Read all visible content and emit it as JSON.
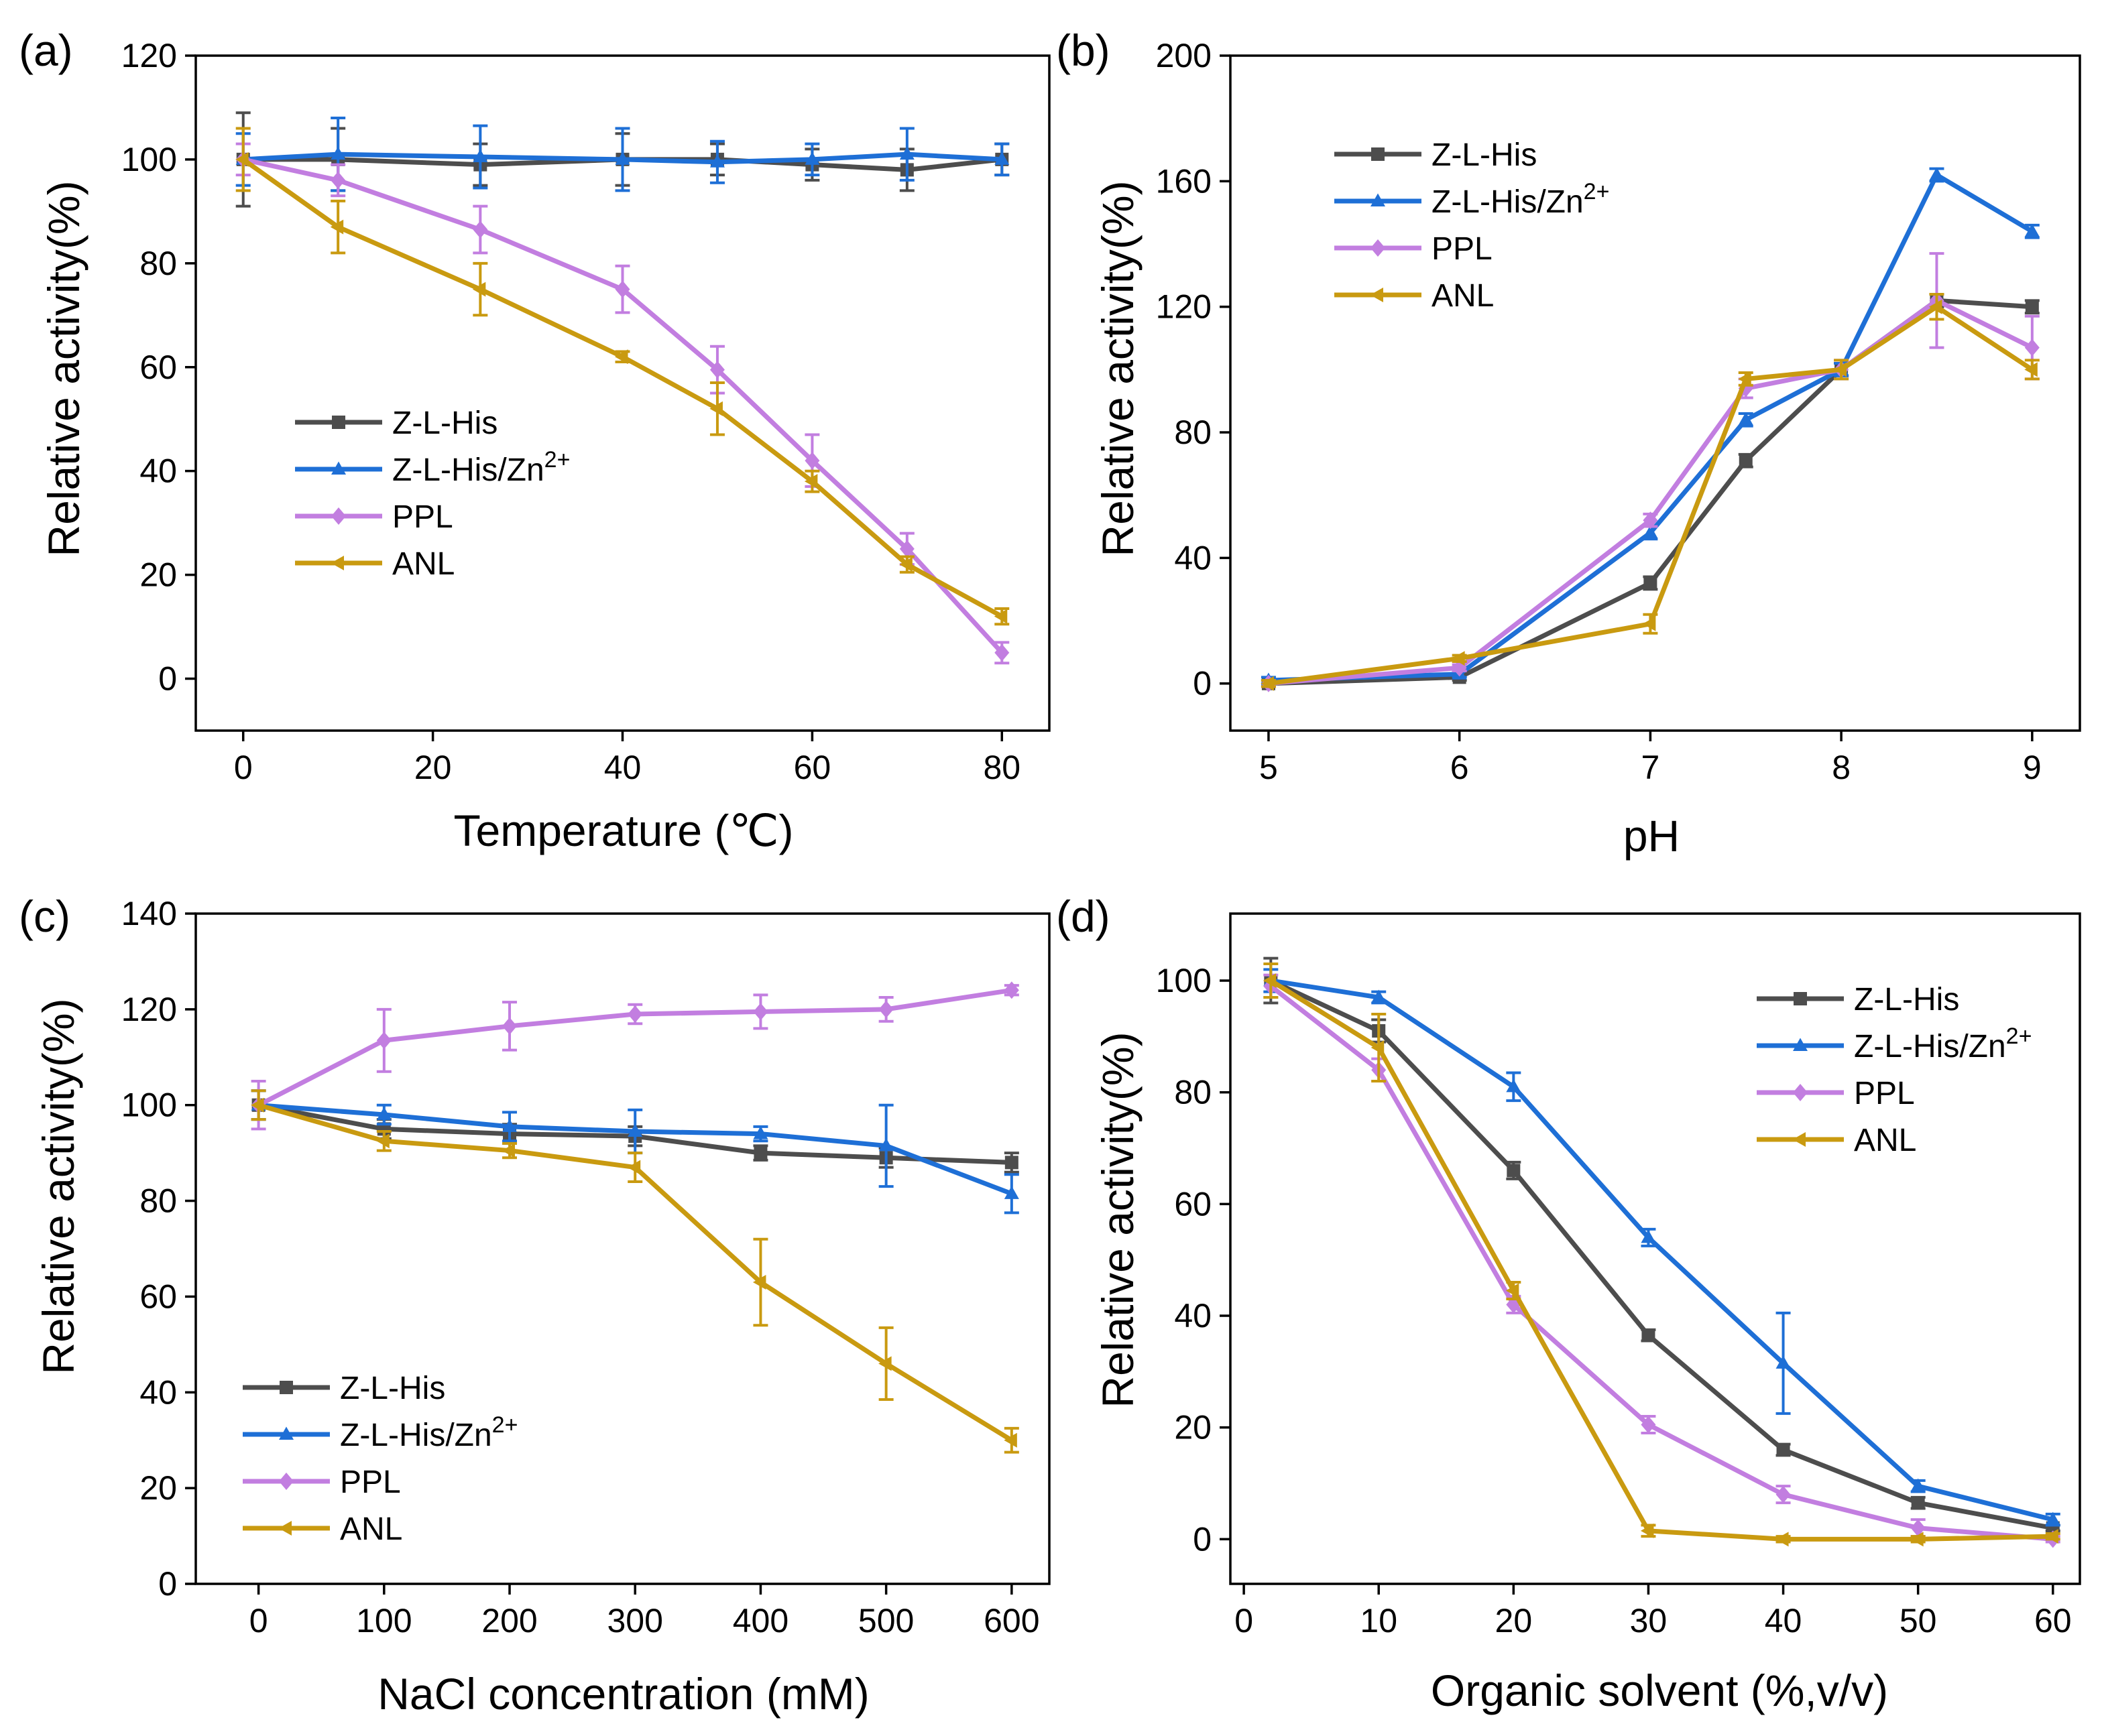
{
  "colors": {
    "Z-L-His": "#4d4d4d",
    "Z-L-His/Zn2+": "#1e6fd6",
    "PPL": "#c27ee0",
    "ANL": "#c99a10"
  },
  "chart_data": [
    {
      "panel": "(a)",
      "type": "line",
      "xlabel": "Temperature (℃)",
      "ylabel": "Relative activity(%)",
      "xlim": [
        -5,
        85
      ],
      "ylim": [
        -10,
        120
      ],
      "xticks": [
        0,
        20,
        40,
        60,
        80
      ],
      "yticks": [
        0,
        20,
        40,
        60,
        80,
        100,
        120
      ],
      "x": [
        0,
        10,
        25,
        40,
        50,
        60,
        70,
        80
      ],
      "legend_position": "middle-left",
      "series": [
        {
          "name": "Z-L-His",
          "sup": "",
          "marker": "square",
          "values": [
            100,
            100,
            99,
            100,
            100,
            99,
            98,
            100
          ],
          "errors": [
            9,
            6,
            4,
            5,
            3,
            3,
            4,
            3
          ]
        },
        {
          "name": "Z-L-His/Zn",
          "sup": "2+",
          "marker": "triangle-up",
          "values": [
            100,
            101,
            100.5,
            100,
            99.5,
            100,
            101,
            100
          ],
          "errors": [
            5,
            7,
            6,
            6,
            4,
            3,
            5,
            3
          ]
        },
        {
          "name": "PPL",
          "sup": "",
          "marker": "diamond",
          "values": [
            100,
            96,
            86.5,
            75,
            59.5,
            42,
            25,
            5
          ],
          "errors": [
            3,
            3,
            4.5,
            4.5,
            4.5,
            5,
            3,
            2
          ]
        },
        {
          "name": "ANL",
          "sup": "",
          "marker": "triangle-left",
          "values": [
            100,
            87,
            75,
            62,
            52,
            38,
            22,
            12
          ],
          "errors": [
            6,
            5,
            5,
            1,
            5,
            2,
            1.5,
            1.5
          ]
        }
      ]
    },
    {
      "panel": "(b)",
      "type": "line",
      "xlabel": "pH",
      "ylabel": "Relative activity(%)",
      "xlim": [
        4.8,
        9.25
      ],
      "ylim": [
        -15,
        200
      ],
      "xticks": [
        5,
        6,
        7,
        8,
        9
      ],
      "yticks": [
        0,
        40,
        80,
        120,
        160,
        200
      ],
      "x": [
        5,
        6,
        7,
        7.5,
        8,
        8.5,
        9
      ],
      "legend_position": "top-left",
      "series": [
        {
          "name": "Z-L-His",
          "sup": "",
          "marker": "square",
          "values": [
            0,
            2,
            32,
            71,
            100,
            122,
            120
          ],
          "errors": [
            1,
            1,
            2,
            2,
            2,
            2,
            2
          ]
        },
        {
          "name": "Z-L-His/Zn",
          "sup": "2+",
          "marker": "triangle-up",
          "values": [
            1,
            3,
            48,
            84,
            100,
            162,
            144
          ],
          "errors": [
            1,
            1,
            2,
            2,
            2,
            2,
            2
          ]
        },
        {
          "name": "PPL",
          "sup": "",
          "marker": "diamond",
          "values": [
            0,
            5,
            52,
            94,
            100,
            122,
            107
          ],
          "errors": [
            1,
            1,
            2,
            3,
            3,
            15,
            10
          ]
        },
        {
          "name": "ANL",
          "sup": "",
          "marker": "triangle-left",
          "values": [
            0,
            8,
            19,
            97,
            100,
            120,
            100
          ],
          "errors": [
            1,
            1,
            3,
            2,
            3,
            4,
            3
          ]
        }
      ]
    },
    {
      "panel": "(c)",
      "type": "line",
      "xlabel": "NaCl concentration (mM)",
      "ylabel": "Relative activity(%)",
      "xlim": [
        -50,
        630
      ],
      "ylim": [
        0,
        140
      ],
      "xticks": [
        0,
        100,
        200,
        300,
        400,
        500,
        600
      ],
      "yticks": [
        0,
        20,
        40,
        60,
        80,
        100,
        120,
        140
      ],
      "x": [
        0,
        100,
        200,
        300,
        400,
        500,
        600
      ],
      "legend_position": "bottom-left",
      "series": [
        {
          "name": "Z-L-His",
          "sup": "",
          "marker": "square",
          "values": [
            100,
            95,
            94,
            93.5,
            90,
            89,
            88
          ],
          "errors": [
            3,
            2,
            2,
            2,
            1.5,
            2,
            2
          ]
        },
        {
          "name": "Z-L-His/Zn",
          "sup": "2+",
          "marker": "triangle-up",
          "values": [
            100,
            98,
            95.5,
            94.5,
            94,
            91.5,
            81.5
          ],
          "errors": [
            3,
            2,
            3,
            4.5,
            1.5,
            8.5,
            4
          ]
        },
        {
          "name": "PPL",
          "sup": "",
          "marker": "diamond",
          "values": [
            100,
            113.5,
            116.5,
            119,
            119.5,
            120,
            124
          ],
          "errors": [
            5,
            6.5,
            5,
            2,
            3.5,
            2.5,
            1
          ]
        },
        {
          "name": "ANL",
          "sup": "",
          "marker": "triangle-left",
          "values": [
            100,
            92.5,
            90.5,
            87,
            63,
            46,
            30
          ],
          "errors": [
            3,
            2,
            1.5,
            3,
            9,
            7.5,
            2.5
          ]
        }
      ]
    },
    {
      "panel": "(d)",
      "type": "line",
      "xlabel": "Organic solvent (%,v/v)",
      "ylabel": "Relative activity(%)",
      "xlim": [
        -1,
        62
      ],
      "ylim": [
        -8,
        112
      ],
      "xticks": [
        0,
        10,
        20,
        30,
        40,
        50,
        60
      ],
      "yticks": [
        0,
        20,
        40,
        60,
        80,
        100
      ],
      "x": [
        2,
        10,
        20,
        30,
        40,
        50,
        60
      ],
      "legend_position": "top-right",
      "series": [
        {
          "name": "Z-L-His",
          "sup": "",
          "marker": "square",
          "values": [
            100,
            91,
            66,
            36.5,
            16,
            6.5,
            2
          ],
          "errors": [
            4,
            2,
            1.5,
            1,
            1,
            1,
            0.5
          ]
        },
        {
          "name": "Z-L-His/Zn",
          "sup": "2+",
          "marker": "triangle-up",
          "values": [
            100,
            97,
            81,
            54,
            31.5,
            9.5,
            3.5
          ],
          "errors": [
            2,
            1,
            2.5,
            1.5,
            9,
            1,
            1
          ]
        },
        {
          "name": "PPL",
          "sup": "",
          "marker": "diamond",
          "values": [
            99,
            84,
            42,
            20.5,
            8,
            2,
            0
          ],
          "errors": [
            2,
            2,
            1.5,
            1.5,
            1.5,
            1.5,
            0.5
          ]
        },
        {
          "name": "ANL",
          "sup": "",
          "marker": "triangle-left",
          "values": [
            100,
            88,
            44.5,
            1.5,
            0,
            0,
            0.5
          ],
          "errors": [
            3,
            6,
            1.5,
            1,
            0.5,
            0.5,
            0.5
          ]
        }
      ]
    }
  ]
}
